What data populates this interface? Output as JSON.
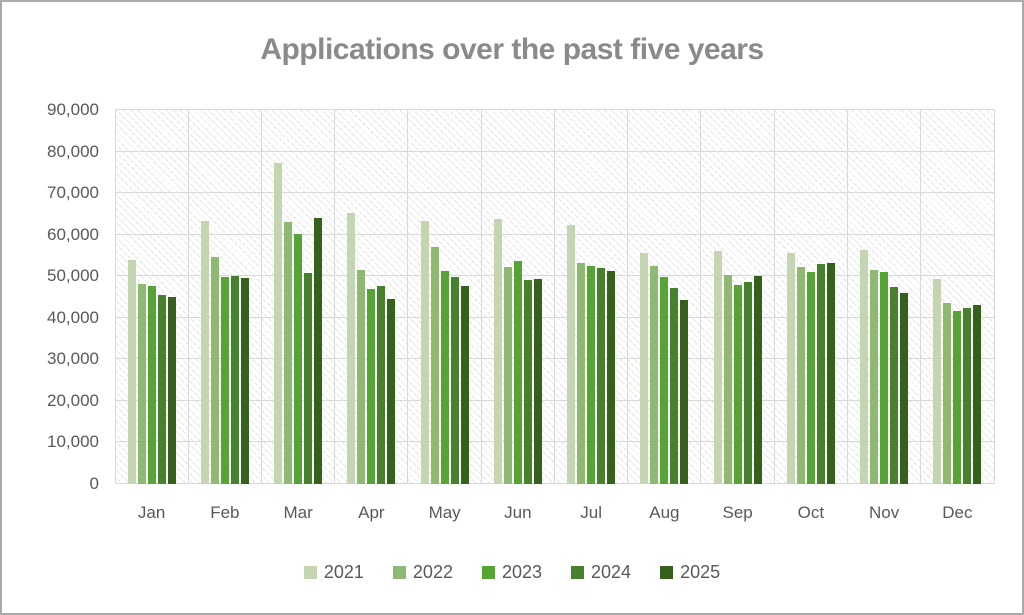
{
  "chart_data": {
    "type": "bar",
    "title": "Applications over the past five years",
    "categories": [
      "Jan",
      "Feb",
      "Mar",
      "Apr",
      "May",
      "Jun",
      "Jul",
      "Aug",
      "Sep",
      "Oct",
      "Nov",
      "Dec"
    ],
    "series": [
      {
        "name": "2021",
        "color": "#c3d5b1",
        "values": [
          54000,
          63200,
          77200,
          65200,
          63200,
          63800,
          62400,
          55500,
          56100,
          55600,
          56300,
          49400
        ]
      },
      {
        "name": "2022",
        "color": "#8fb973",
        "values": [
          48200,
          54700,
          63000,
          51600,
          57100,
          52200,
          53200,
          52500,
          50300,
          52300,
          51500,
          43500
        ]
      },
      {
        "name": "2023",
        "color": "#56a336",
        "values": [
          47600,
          49700,
          60200,
          47000,
          51300,
          53600,
          52500,
          49700,
          47800,
          50900,
          50900,
          41700
        ]
      },
      {
        "name": "2024",
        "color": "#47812e",
        "values": [
          45400,
          50100,
          50700,
          47700,
          49900,
          49100,
          52100,
          47100,
          48500,
          53000,
          47500,
          42300
        ]
      },
      {
        "name": "2025",
        "color": "#35611d",
        "values": [
          45100,
          49500,
          64000,
          44500,
          47700,
          49400,
          51300,
          44400,
          50000,
          53200,
          45900,
          43000
        ]
      }
    ],
    "y_axis": {
      "min": 0,
      "max": 90000,
      "tick_step": 10000,
      "tick_labels": [
        "0",
        "10,000",
        "20,000",
        "30,000",
        "40,000",
        "50,000",
        "60,000",
        "70,000",
        "80,000",
        "90,000"
      ]
    },
    "x_axis": {
      "label": ""
    },
    "legend_position": "bottom",
    "grid": true,
    "plot_background": "diagonal-hatch"
  },
  "colors": {
    "title_text": "#8a8a8a",
    "axis_text": "#595959",
    "gridline": "#d9d9d9",
    "border": "#aaaaaa"
  }
}
